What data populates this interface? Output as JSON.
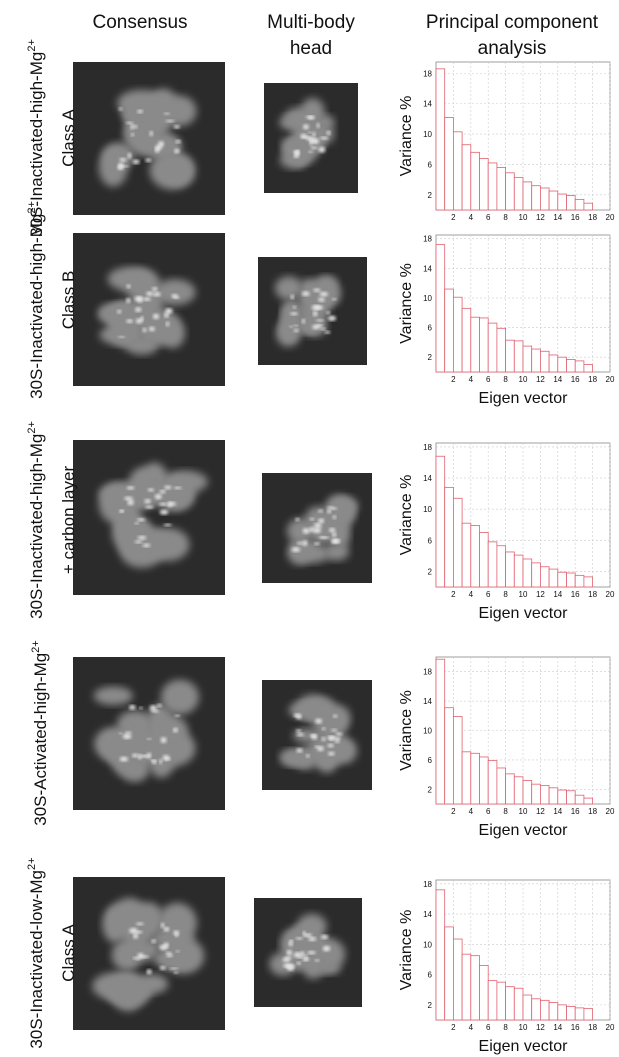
{
  "headers": [
    [
      "Consensus"
    ],
    [
      "Multi-body",
      "head"
    ],
    [
      "Principal component",
      "analysis"
    ]
  ],
  "rows": [
    {
      "main": "30S-Inactivated-high-Mg",
      "sup": "2+",
      "second": "Class A"
    },
    {
      "main": "30S-Inactivated-high-Mg",
      "sup": "2+",
      "second": "Class B"
    },
    {
      "main": "30S-Inactivated-high-Mg",
      "sup": "2+",
      "second": "+ carbon layer"
    },
    {
      "main": "30S-Activated-high-Mg",
      "sup": "2+"
    },
    {
      "main": "30S-Inactivated-low-Mg",
      "sup": "2+",
      "second": "Class A"
    }
  ],
  "chart_data": [
    {
      "type": "bar",
      "y_label": "Variance %",
      "color": "#e0606e",
      "grid": true,
      "x": [
        1,
        2,
        3,
        4,
        5,
        6,
        7,
        8,
        9,
        10,
        11,
        12,
        13,
        14,
        15,
        16,
        17,
        18
      ],
      "values": [
        18.6,
        12.2,
        10.3,
        8.6,
        7.6,
        6.8,
        6.2,
        5.6,
        4.9,
        4.3,
        3.7,
        3.2,
        2.9,
        2.5,
        2.1,
        1.9,
        1.4,
        0.9
      ],
      "xlim": [
        0,
        20
      ],
      "xticks": [
        2,
        4,
        6,
        8,
        10,
        12,
        14,
        16,
        18,
        20
      ],
      "ylim": [
        0,
        19.5
      ],
      "yticks": [
        2,
        6,
        10,
        14,
        18
      ]
    },
    {
      "type": "bar",
      "x_label": "Eigen vector",
      "y_label": "Variance %",
      "color": "#e0606e",
      "grid": true,
      "x": [
        1,
        2,
        3,
        4,
        5,
        6,
        7,
        8,
        9,
        10,
        11,
        12,
        13,
        14,
        15,
        16,
        17,
        18
      ],
      "values": [
        17.2,
        11.2,
        10.1,
        8.6,
        7.4,
        7.3,
        6.6,
        5.9,
        4.3,
        4.2,
        3.5,
        3.1,
        2.8,
        2.3,
        2.0,
        1.7,
        1.5,
        1.0
      ],
      "xlim": [
        0,
        20
      ],
      "xticks": [
        2,
        4,
        6,
        8,
        10,
        12,
        14,
        16,
        18,
        20
      ],
      "ylim": [
        0,
        18.5
      ],
      "yticks": [
        2,
        6,
        10,
        14,
        18
      ]
    },
    {
      "type": "bar",
      "x_label": "Eigen vector",
      "y_label": "Variance %",
      "color": "#e0606e",
      "grid": true,
      "x": [
        1,
        2,
        3,
        4,
        5,
        6,
        7,
        8,
        9,
        10,
        11,
        12,
        13,
        14,
        15,
        16,
        17,
        18
      ],
      "values": [
        16.8,
        12.8,
        11.4,
        8.2,
        7.9,
        7.0,
        5.8,
        5.3,
        4.5,
        4.1,
        3.6,
        3.1,
        2.6,
        2.3,
        1.9,
        1.8,
        1.5,
        1.3
      ],
      "xlim": [
        0,
        20
      ],
      "xticks": [
        2,
        4,
        6,
        8,
        10,
        12,
        14,
        16,
        18,
        20
      ],
      "ylim": [
        0,
        18.5
      ],
      "yticks": [
        2,
        6,
        10,
        14,
        18
      ]
    },
    {
      "type": "bar",
      "x_label": "Eigen vector",
      "y_label": "Variance %",
      "color": "#e0606e",
      "grid": true,
      "x": [
        1,
        2,
        3,
        4,
        5,
        6,
        7,
        8,
        9,
        10,
        11,
        12,
        13,
        14,
        15,
        16,
        17,
        18
      ],
      "values": [
        19.7,
        13.1,
        11.9,
        7.1,
        6.9,
        6.4,
        5.9,
        4.9,
        4.1,
        3.7,
        3.2,
        2.7,
        2.5,
        2.2,
        1.9,
        1.8,
        1.2,
        0.8
      ],
      "xlim": [
        0,
        20
      ],
      "xticks": [
        2,
        4,
        6,
        8,
        10,
        12,
        14,
        16,
        18,
        20
      ],
      "ylim": [
        0,
        20
      ],
      "yticks": [
        2,
        6,
        10,
        14,
        18
      ]
    },
    {
      "type": "bar",
      "x_label": "Eigen vector",
      "y_label": "Variance %",
      "color": "#e0606e",
      "grid": true,
      "x": [
        1,
        2,
        3,
        4,
        5,
        6,
        7,
        8,
        9,
        10,
        11,
        12,
        13,
        14,
        15,
        16,
        17,
        18
      ],
      "values": [
        17.2,
        12.3,
        10.7,
        8.7,
        8.5,
        7.2,
        5.2,
        5.0,
        4.4,
        4.2,
        3.3,
        2.8,
        2.6,
        2.3,
        2.0,
        1.8,
        1.6,
        1.5
      ],
      "xlim": [
        0,
        20
      ],
      "xticks": [
        2,
        4,
        6,
        8,
        10,
        12,
        14,
        16,
        18,
        20
      ],
      "ylim": [
        0,
        18.5
      ],
      "yticks": [
        2,
        6,
        10,
        14,
        18
      ]
    }
  ]
}
